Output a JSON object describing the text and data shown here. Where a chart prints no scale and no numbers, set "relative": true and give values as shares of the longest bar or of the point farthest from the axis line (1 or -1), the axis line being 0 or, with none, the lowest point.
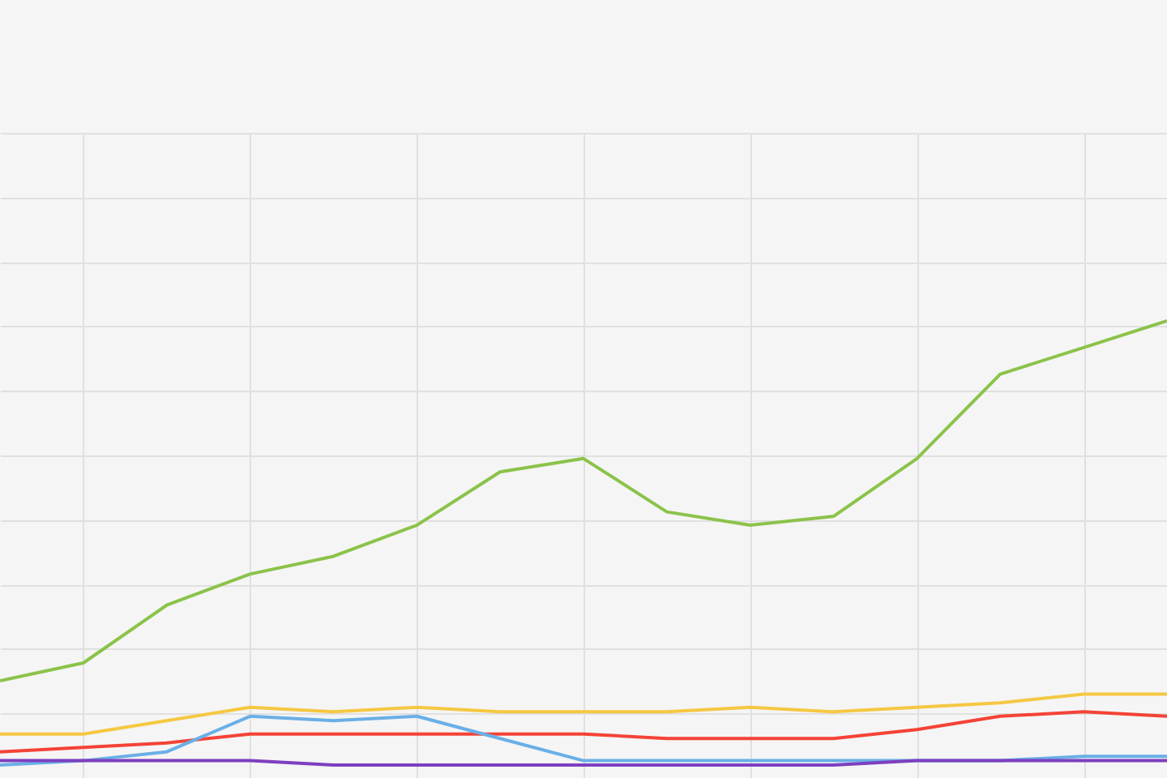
{
  "chart_data": {
    "type": "line",
    "relative": true,
    "grid": true,
    "legend": false,
    "marker": "none",
    "line_style": "solid",
    "categories": [
      null,
      null,
      null,
      null,
      null,
      null,
      null,
      null,
      null,
      null,
      null,
      null,
      null,
      null,
      null
    ],
    "series": [
      {
        "color": "#8bc34a",
        "values": [
          0.19,
          0.23,
          0.36,
          0.43,
          0.47,
          0.54,
          0.66,
          0.69,
          0.57,
          0.54,
          0.56,
          0.69,
          0.88,
          0.94,
          1.0
        ]
      },
      {
        "color": "#f5c842",
        "values": [
          0.07,
          0.07,
          0.1,
          0.13,
          0.12,
          0.13,
          0.12,
          0.12,
          0.12,
          0.13,
          0.12,
          0.13,
          0.14,
          0.16,
          0.16
        ]
      },
      {
        "color": "#f44336",
        "values": [
          0.03,
          0.04,
          0.05,
          0.07,
          0.07,
          0.07,
          0.07,
          0.07,
          0.06,
          0.06,
          0.06,
          0.08,
          0.11,
          0.12,
          0.11
        ]
      },
      {
        "color": "#6aafe6",
        "values": [
          0,
          0.01,
          0.03,
          0.11,
          0.1,
          0.11,
          0.06,
          0.01,
          0.01,
          0.01,
          0.01,
          0.01,
          0.01,
          0.02,
          0.02
        ]
      },
      {
        "color": "#7e3fbf",
        "values": [
          0.01,
          0.01,
          0.01,
          0.01,
          0,
          0,
          0,
          0,
          0,
          0,
          0,
          0.01,
          0.01,
          0.01,
          0.01
        ]
      }
    ]
  }
}
